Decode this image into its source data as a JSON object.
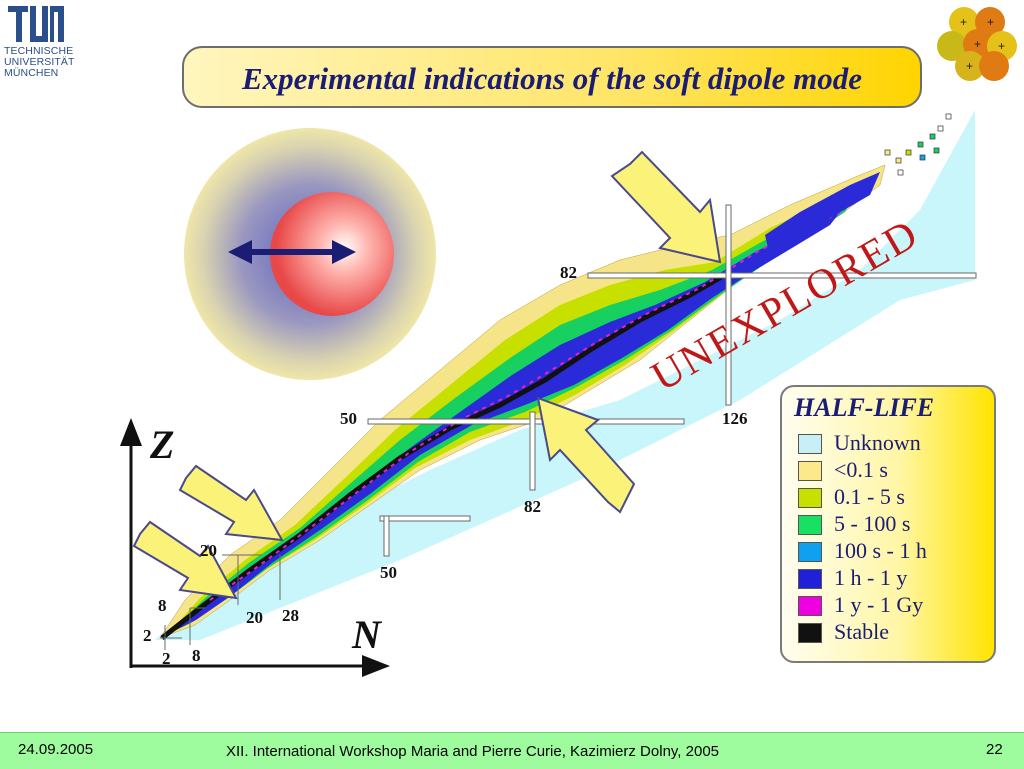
{
  "header": {
    "university_logo": {
      "text_lines": [
        "TECHNISCHE",
        "UNIVERSITÄT",
        "MÜNCHEN"
      ]
    },
    "nucleus_logo": {
      "icon": "nucleus-icon",
      "plus_sign": "+"
    }
  },
  "title": "Experimental indications of the soft dipole mode",
  "diagram": {
    "unexplored_label": "UNEXPLORED",
    "axis_labels": {
      "z": "Z",
      "n": "N"
    },
    "magic_numbers": {
      "z_2": "2",
      "n_2": "2",
      "z_8": "8",
      "n_8": "8",
      "z_20": "20",
      "n_20": "20",
      "n_28": "28",
      "z_50": "50",
      "n_50": "50",
      "z_82": "82",
      "n_82": "82",
      "n_126": "126"
    },
    "halo_nucleus": {
      "icon": "halo-nucleus-icon",
      "arrow_icon": "double-arrow-icon"
    },
    "arrows": [
      "yellow-arrow-icon",
      "yellow-arrow-icon",
      "yellow-arrow-icon",
      "yellow-arrow-icon"
    ]
  },
  "legend": {
    "title": "HALF-LIFE",
    "items": [
      {
        "label": "Unknown",
        "color": "#c8eef6"
      },
      {
        "label": "<0.1 s",
        "color": "#fbe98c"
      },
      {
        "label": "0.1 - 5 s",
        "color": "#c8e000"
      },
      {
        "label": "5  - 100 s",
        "color": "#18e060"
      },
      {
        "label": "100 s - 1 h",
        "color": "#10a0f0"
      },
      {
        "label": "1 h - 1 y",
        "color": "#2020d8"
      },
      {
        "label": "1 y - 1 Gy",
        "color": "#f000e0"
      },
      {
        "label": "Stable",
        "color": "#111111"
      }
    ]
  },
  "footer": {
    "date": "24.09.2005",
    "event": "XII. International Workshop Maria and Pierre Curie, Kazimierz Dolny, 2005",
    "page": "22"
  }
}
